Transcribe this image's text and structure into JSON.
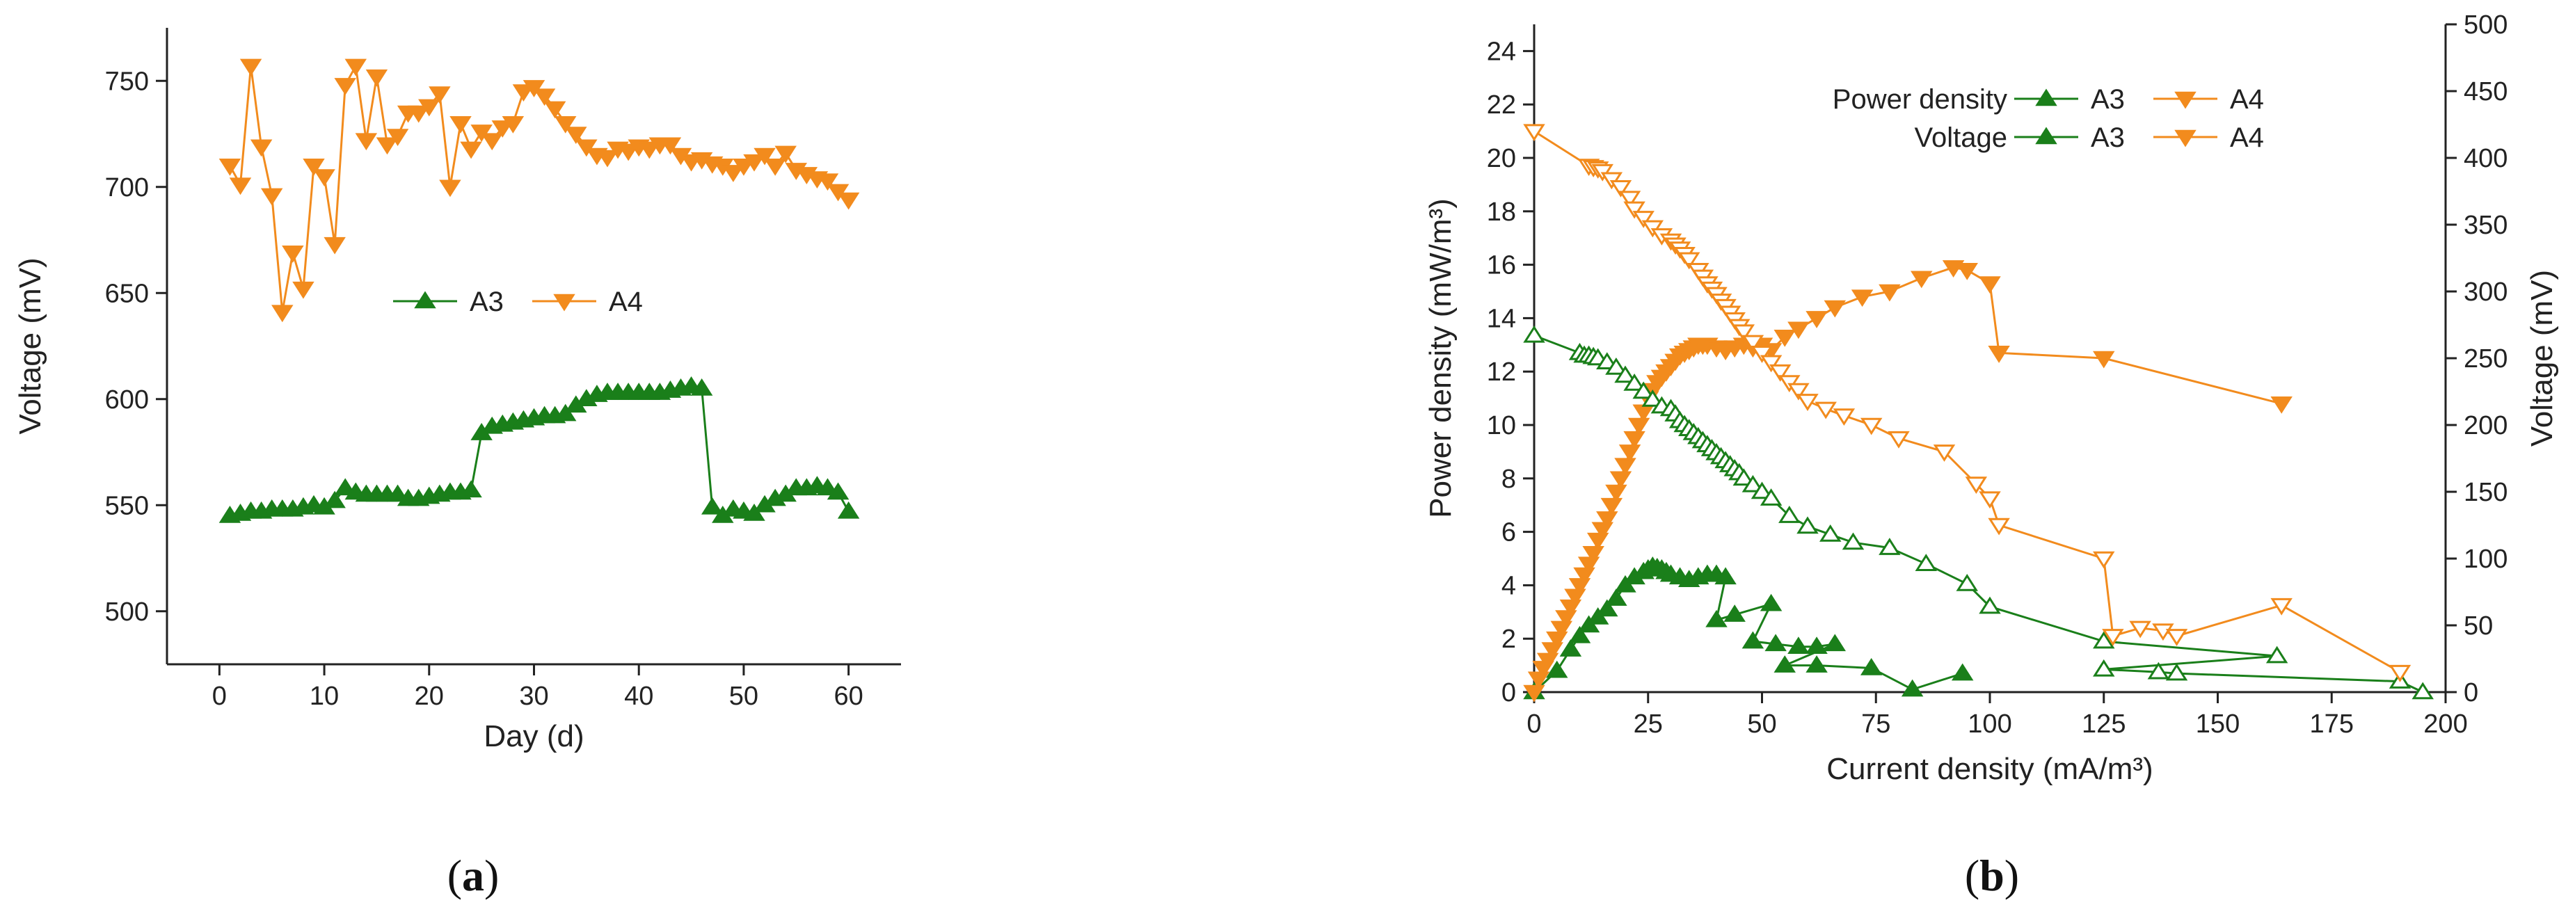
{
  "colors": {
    "green": "#1a7f1a",
    "orange": "#f28b1d",
    "axis": "#222222"
  },
  "panel_labels": {
    "a": "a",
    "b": "b"
  },
  "chart_data": [
    {
      "id": "a",
      "type": "line",
      "xlabel": "Day (d)",
      "ylabel": "Voltage (mV)",
      "xlim": [
        -5,
        65
      ],
      "ylim": [
        475,
        775
      ],
      "xticks": [
        0,
        10,
        20,
        30,
        40,
        50,
        60
      ],
      "yticks": [
        500,
        550,
        600,
        650,
        700,
        750
      ],
      "legend": [
        "A3",
        "A4"
      ],
      "series": [
        {
          "name": "A3",
          "marker": "triangle-up",
          "color": "green",
          "x": [
            1,
            2,
            3,
            4,
            5,
            6,
            7,
            8,
            9,
            10,
            11,
            12,
            13,
            14,
            15,
            16,
            17,
            18,
            19,
            20,
            21,
            22,
            23,
            24,
            25,
            26,
            27,
            28,
            29,
            30,
            31,
            32,
            33,
            34,
            35,
            36,
            37,
            38,
            39,
            40,
            41,
            42,
            43,
            44,
            45,
            46,
            47,
            48,
            49,
            50,
            51,
            52,
            53,
            54,
            55,
            56,
            57,
            58,
            59,
            60
          ],
          "y": [
            545,
            546,
            547,
            547,
            548,
            548,
            548,
            549,
            550,
            549,
            552,
            558,
            556,
            555,
            555,
            555,
            555,
            553,
            553,
            554,
            555,
            556,
            556,
            557,
            584,
            587,
            588,
            589,
            590,
            591,
            592,
            592,
            593,
            597,
            600,
            602,
            603,
            603,
            603,
            603,
            603,
            603,
            604,
            605,
            606,
            605,
            549,
            545,
            548,
            547,
            546,
            550,
            553,
            555,
            558,
            558,
            559,
            558,
            556,
            547
          ]
        },
        {
          "name": "A4",
          "marker": "triangle-down",
          "color": "orange",
          "x": [
            1,
            2,
            3,
            4,
            5,
            6,
            7,
            8,
            9,
            10,
            11,
            12,
            13,
            14,
            15,
            16,
            17,
            18,
            19,
            20,
            21,
            22,
            23,
            24,
            25,
            26,
            27,
            28,
            29,
            30,
            31,
            32,
            33,
            34,
            35,
            36,
            37,
            38,
            39,
            40,
            41,
            42,
            43,
            44,
            45,
            46,
            47,
            48,
            49,
            50,
            51,
            52,
            53,
            54,
            55,
            56,
            57,
            58,
            59,
            60
          ],
          "y": [
            710,
            701,
            757,
            719,
            696,
            641,
            669,
            652,
            710,
            705,
            673,
            748,
            757,
            722,
            752,
            720,
            724,
            735,
            735,
            738,
            744,
            700,
            730,
            718,
            726,
            722,
            728,
            730,
            745,
            747,
            743,
            737,
            730,
            725,
            719,
            715,
            714,
            718,
            717,
            719,
            718,
            720,
            720,
            715,
            712,
            713,
            711,
            710,
            707,
            710,
            712,
            715,
            710,
            716,
            708,
            706,
            704,
            703,
            698,
            694
          ]
        }
      ]
    },
    {
      "id": "b",
      "type": "line",
      "xlabel": "Current density (mA/m³)",
      "ylabel": "Power density (mW/m³)",
      "y2label": "Voltage (mV)",
      "xlim": [
        0,
        200
      ],
      "ylim": [
        0,
        25
      ],
      "y2lim": [
        0,
        500
      ],
      "xticks": [
        0,
        25,
        50,
        75,
        100,
        125,
        150,
        175,
        200
      ],
      "yticks": [
        0,
        2,
        4,
        6,
        8,
        10,
        12,
        14,
        16,
        18,
        20,
        22,
        24
      ],
      "y2ticks": [
        0,
        50,
        100,
        150,
        200,
        250,
        300,
        350,
        400,
        450,
        500
      ],
      "legend": {
        "row_labels": [
          "Power density",
          "Voltage"
        ],
        "entries": [
          "A3",
          "A4",
          "A3",
          "A4"
        ]
      },
      "series": [
        {
          "name": "A3 Power density",
          "axis": "left",
          "marker": "triangle-up",
          "filled": true,
          "color": "green",
          "x": [
            0,
            5,
            8,
            10,
            12,
            14,
            16,
            18,
            20,
            22,
            24,
            25,
            26,
            27,
            28,
            29,
            30,
            32,
            34,
            36,
            38,
            40,
            42,
            40,
            44,
            52,
            48,
            53,
            58,
            62,
            66,
            55,
            62,
            74,
            83,
            94
          ],
          "y": [
            0,
            0.8,
            1.6,
            2.1,
            2.5,
            2.8,
            3.1,
            3.5,
            4.0,
            4.3,
            4.5,
            4.6,
            4.7,
            4.65,
            4.6,
            4.5,
            4.4,
            4.3,
            4.2,
            4.3,
            4.4,
            4.4,
            4.3,
            2.7,
            2.9,
            3.3,
            1.9,
            1.8,
            1.7,
            1.7,
            1.8,
            1.0,
            1.0,
            0.9,
            0.1,
            0.7
          ]
        },
        {
          "name": "A4 Power density",
          "axis": "left",
          "marker": "triangle-down",
          "filled": true,
          "color": "orange",
          "x": [
            0,
            1,
            2,
            3,
            4,
            5,
            6,
            7,
            8,
            9,
            10,
            11,
            12,
            13,
            14,
            15,
            16,
            17,
            18,
            19,
            20,
            21,
            22,
            23,
            24,
            25,
            26,
            27,
            28,
            29,
            30,
            31,
            32,
            33,
            34,
            35,
            36,
            37,
            38,
            40,
            42,
            44,
            46,
            48,
            50,
            52,
            55,
            58,
            62,
            66,
            72,
            78,
            85,
            92,
            95,
            100,
            102,
            125,
            164
          ],
          "y": [
            0,
            0.5,
            0.9,
            1.2,
            1.6,
            2.0,
            2.4,
            2.8,
            3.2,
            3.6,
            4.0,
            4.4,
            4.8,
            5.2,
            5.7,
            6.1,
            6.5,
            7.0,
            7.5,
            8.0,
            8.5,
            9.0,
            9.5,
            10.0,
            10.5,
            11.0,
            11.3,
            11.6,
            11.8,
            12.0,
            12.2,
            12.4,
            12.6,
            12.7,
            12.8,
            12.9,
            13.0,
            13.0,
            13.0,
            12.9,
            12.8,
            12.9,
            13.0,
            12.9,
            13.0,
            12.8,
            13.3,
            13.6,
            14.0,
            14.4,
            14.8,
            15.0,
            15.5,
            15.9,
            15.8,
            15.3,
            12.7,
            12.5,
            10.8
          ]
        },
        {
          "name": "A3 Voltage",
          "axis": "right",
          "marker": "triangle-up",
          "filled": false,
          "color": "green",
          "x": [
            0,
            10,
            11,
            12,
            13,
            14,
            16,
            18,
            20,
            22,
            24,
            26,
            28,
            30,
            31,
            32,
            33,
            34,
            35,
            36,
            37,
            38,
            39,
            40,
            41,
            42,
            43,
            44,
            45,
            46,
            48,
            50,
            52,
            56,
            60,
            65,
            70,
            78,
            86,
            95,
            100,
            125,
            163,
            125,
            137,
            141,
            190,
            195
          ],
          "y": [
            267,
            254,
            252,
            252,
            251,
            250,
            247,
            243,
            237,
            231,
            225,
            219,
            214,
            212,
            208,
            203,
            200,
            197,
            194,
            191,
            188,
            185,
            182,
            179,
            176,
            173,
            170,
            167,
            164,
            160,
            155,
            150,
            145,
            132,
            124,
            118,
            112,
            108,
            96,
            81,
            64,
            38,
            27,
            17,
            15,
            14,
            8,
            0
          ]
        },
        {
          "name": "A4 Voltage",
          "axis": "right",
          "marker": "triangle-down",
          "filled": false,
          "color": "orange",
          "x": [
            0,
            12,
            13,
            14,
            15,
            17,
            19,
            21,
            22,
            24,
            26,
            28,
            30,
            31,
            32,
            33,
            34,
            36,
            37,
            38,
            39,
            40,
            41,
            42,
            43,
            44,
            45,
            46,
            48,
            50,
            52,
            54,
            56,
            58,
            60,
            64,
            68,
            74,
            80,
            90,
            97,
            100,
            102,
            125,
            127,
            133,
            138,
            141,
            164,
            190
          ],
          "y": [
            420,
            394,
            393,
            392,
            390,
            384,
            378,
            370,
            362,
            355,
            348,
            342,
            338,
            335,
            332,
            328,
            324,
            316,
            311,
            306,
            302,
            298,
            293,
            289,
            284,
            279,
            274,
            270,
            262,
            254,
            247,
            240,
            232,
            226,
            218,
            212,
            207,
            200,
            190,
            180,
            156,
            145,
            125,
            100,
            42,
            48,
            46,
            42,
            65,
            15
          ]
        }
      ]
    }
  ]
}
